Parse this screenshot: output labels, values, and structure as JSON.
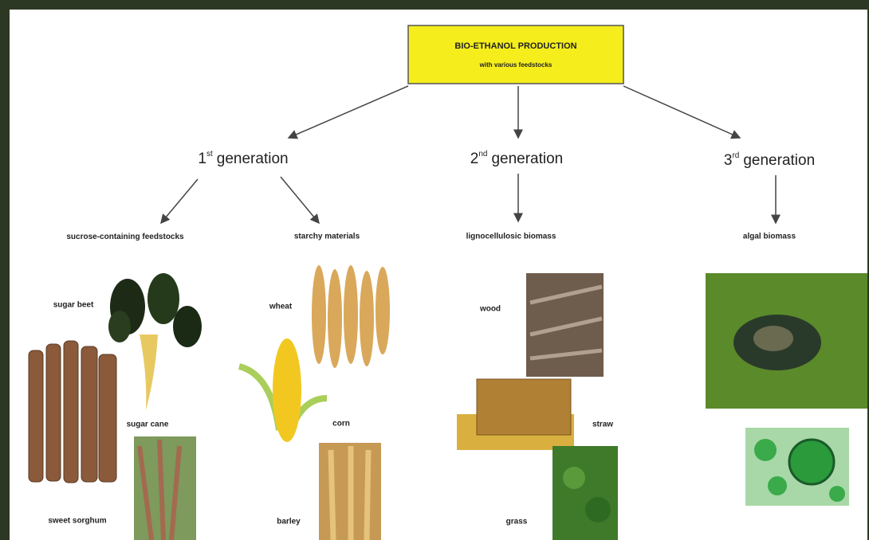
{
  "title": {
    "main": "BIO-ETHANOL PRODUCTION",
    "sub": "with various feedstocks"
  },
  "generations": [
    {
      "num": "1",
      "sup": "st",
      "label": "generation",
      "groups": [
        {
          "label": "sucrose-containing feedstocks",
          "items": [
            "sugar beet",
            "sugar cane",
            "sweet sorghum"
          ]
        },
        {
          "label": "starchy materials",
          "items": [
            "wheat",
            "corn",
            "barley"
          ]
        }
      ]
    },
    {
      "num": "2",
      "sup": "nd",
      "label": "generation",
      "groups": [
        {
          "label": "lignocellulosic biomass",
          "items": [
            "wood",
            "straw",
            "grass"
          ]
        }
      ]
    },
    {
      "num": "3",
      "sup": "rd",
      "label": "generation",
      "groups": [
        {
          "label": "algal biomass",
          "items": []
        }
      ]
    }
  ]
}
